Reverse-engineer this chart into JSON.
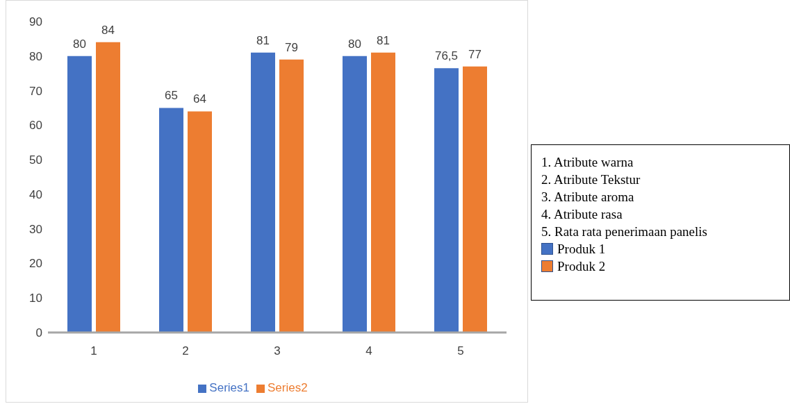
{
  "chart_data": {
    "type": "bar",
    "categories": [
      "1",
      "2",
      "3",
      "4",
      "5"
    ],
    "series": [
      {
        "name": "Series1",
        "color": "#4472c4",
        "values": [
          80,
          65,
          81,
          80,
          76.5
        ],
        "value_labels": [
          "80",
          "65",
          "81",
          "80",
          "76,5"
        ]
      },
      {
        "name": "Series2",
        "color": "#ed7d31",
        "values": [
          84,
          64,
          79,
          81,
          77
        ],
        "value_labels": [
          "84",
          "64",
          "79",
          "81",
          "77"
        ]
      }
    ],
    "ylim": [
      0,
      90
    ],
    "yticks": [
      0,
      10,
      20,
      30,
      40,
      50,
      60,
      70,
      80,
      90
    ],
    "grid": false,
    "legend": "bottom",
    "annotations": [
      "1. Atribute warna",
      "2. Atribute Tekstur",
      "3. Atribute aroma",
      "4. Atribute rasa",
      "5. Rata rata penerimaan panelis",
      "Produk 1",
      "Produk 2"
    ]
  }
}
